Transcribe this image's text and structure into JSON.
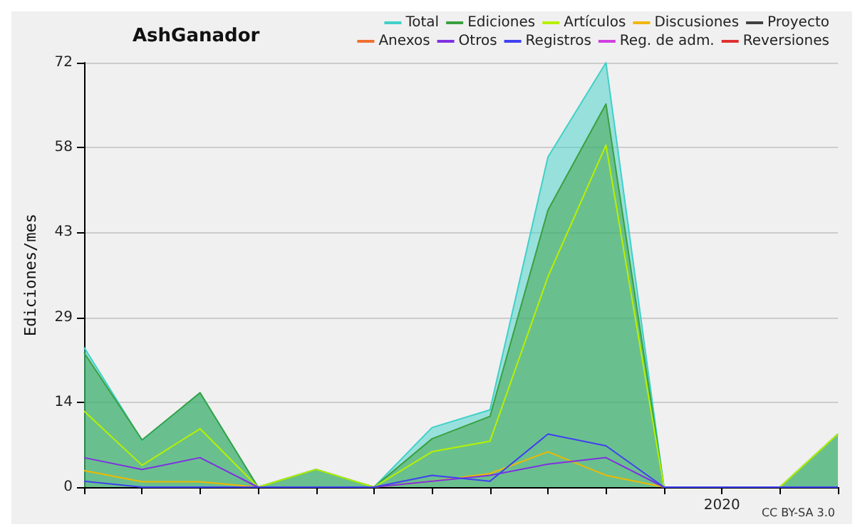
{
  "chart_data": {
    "type": "line",
    "title": "AshGanador",
    "ylabel": "Ediciones/mes",
    "annotations": [
      "CC BY-SA 3.0"
    ],
    "categories": [
      null,
      null,
      null,
      null,
      null,
      null,
      null,
      null,
      null,
      null,
      null,
      "2020",
      null,
      null
    ],
    "ylim": [
      0,
      72
    ],
    "yticks": [
      0,
      {
        "value": 14.4,
        "label": "14"
      },
      {
        "value": 28.8,
        "label": "29"
      },
      {
        "value": 43.2,
        "label": "43"
      },
      {
        "value": 57.6,
        "label": "58"
      },
      72
    ],
    "grid": "y",
    "legend": "top right",
    "marker": "none",
    "line_style": "solid",
    "series": [
      {
        "name": "Total",
        "type": "area",
        "color": "#40d0c8",
        "values": [
          23.7,
          7.9,
          16,
          0,
          3,
          0,
          10.1,
          13.1,
          56,
          72,
          0,
          0,
          0,
          9
        ]
      },
      {
        "name": "Ediciones",
        "type": "area",
        "color": "#3aa040",
        "values": [
          22.8,
          8,
          16,
          0,
          3,
          0,
          8.2,
          12,
          47,
          65,
          0,
          0,
          0,
          9
        ]
      },
      {
        "name": "Artículos",
        "type": "line",
        "color": "#b8f000",
        "values": [
          12.9,
          3.7,
          9.9,
          0,
          3,
          0,
          6,
          7.8,
          35.7,
          58,
          0,
          0,
          0,
          9
        ]
      },
      {
        "name": "Discusiones",
        "type": "line",
        "color": "#f0b800",
        "values": [
          2.8,
          0.9,
          0.9,
          0,
          0,
          0,
          1,
          2.3,
          6,
          2,
          0,
          0,
          null,
          null
        ]
      },
      {
        "name": "Proyecto",
        "type": "line",
        "color": "#404040",
        "values": [
          null,
          null,
          null,
          null,
          null,
          null,
          null,
          null,
          null,
          null,
          null,
          null,
          null,
          null
        ]
      },
      {
        "name": "Anexos",
        "type": "line",
        "color": "#f07030",
        "values": [
          null,
          null,
          null,
          null,
          null,
          null,
          null,
          null,
          null,
          null,
          null,
          null,
          null,
          null
        ]
      },
      {
        "name": "Otros",
        "type": "line",
        "color": "#8030e0",
        "values": [
          5,
          3,
          5,
          0,
          0,
          0,
          1,
          2,
          3.9,
          5,
          0,
          0,
          null,
          null
        ]
      },
      {
        "name": "Registros",
        "type": "line",
        "color": "#4040f0",
        "values": [
          1,
          0,
          0,
          0,
          0,
          0,
          2,
          1,
          9,
          7,
          0,
          0,
          0,
          0
        ]
      },
      {
        "name": "Reg. de adm.",
        "type": "line",
        "color": "#d040e0",
        "values": [
          null,
          null,
          null,
          null,
          null,
          null,
          null,
          null,
          null,
          null,
          null,
          null,
          null,
          null
        ]
      },
      {
        "name": "Reversiones",
        "type": "line",
        "color": "#e03030",
        "values": [
          null,
          null,
          null,
          null,
          null,
          null,
          null,
          null,
          null,
          null,
          null,
          null,
          null,
          null
        ]
      }
    ]
  }
}
